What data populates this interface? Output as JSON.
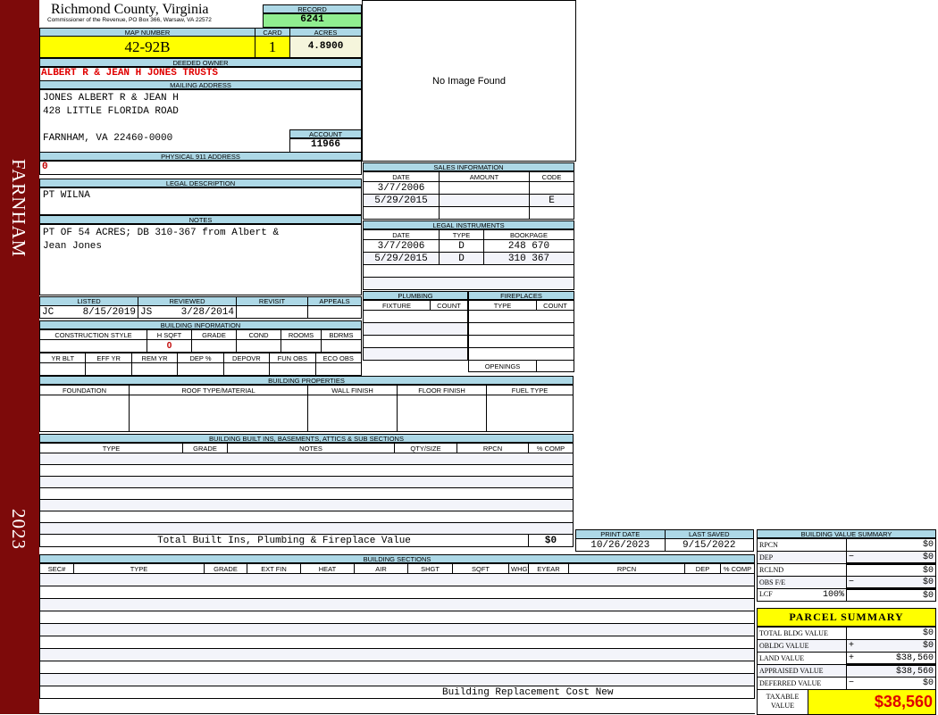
{
  "side": {
    "district": "FARNHAM",
    "year": "2023"
  },
  "header": {
    "title": "Richmond County, Virginia",
    "subtitle": "Commissioner of the Revenue, PO Box 366, Warsaw, VA 22572",
    "record_label": "RECORD",
    "record": "6241"
  },
  "map": {
    "map_label": "MAP NUMBER",
    "map_number": "42-92B",
    "card_label": "CARD",
    "card": "1",
    "acres_label": "ACRES",
    "acres": "4.8900"
  },
  "owner": {
    "label": "DEEDED OWNER",
    "value": "ALBERT R & JEAN H JONES TRUSTS"
  },
  "mailing": {
    "label": "MAILING ADDRESS",
    "line1": "JONES ALBERT R & JEAN H",
    "line2": "428 LITTLE FLORIDA ROAD",
    "line3": "FARNHAM, VA 22460-0000",
    "account_label": "ACCOUNT",
    "account": "11966"
  },
  "physical": {
    "label": "PHYSICAL 911 ADDRESS",
    "value": "0"
  },
  "image": {
    "text": "No Image Found"
  },
  "legal": {
    "label": "LEGAL DESCRIPTION",
    "value": "PT WILNA"
  },
  "notes": {
    "label": "NOTES",
    "line1": "PT OF 54 ACRES; DB 310-367 from Albert &",
    "line2": "Jean Jones"
  },
  "review": {
    "listed_label": "LISTED",
    "reviewed_label": "REVIEWED",
    "revisit_label": "REVISIT",
    "appeals_label": "APPEALS",
    "listed_by": "JC",
    "listed_date": "8/15/2019",
    "reviewed_by": "JS",
    "reviewed_date": "3/28/2014"
  },
  "building_info": {
    "label": "BUILDING INFORMATION",
    "cols1": [
      "CONSTRUCTION STYLE",
      "H SQFT",
      "GRADE",
      "COND",
      "ROOMS",
      "BDRMS"
    ],
    "hsqft": "0",
    "cols2": [
      "YR BLT",
      "EFF YR",
      "REM YR",
      "DEP %",
      "DEPOVR",
      "FUN OBS",
      "ECO OBS"
    ]
  },
  "sales": {
    "label": "SALES INFORMATION",
    "cols": [
      "DATE",
      "AMOUNT",
      "CODE"
    ],
    "rows": [
      [
        "3/7/2006",
        "",
        ""
      ],
      [
        "5/29/2015",
        "",
        "E"
      ]
    ]
  },
  "instruments": {
    "label": "LEGAL INSTRUMENTS",
    "cols": [
      "DATE",
      "TYPE",
      "BOOKPAGE"
    ],
    "rows": [
      [
        "3/7/2006",
        "D",
        "248 670"
      ],
      [
        "5/29/2015",
        "D",
        "310 367"
      ]
    ]
  },
  "plumbing": {
    "label": "PLUMBING",
    "cols": [
      "FIXTURE",
      "COUNT"
    ]
  },
  "fireplaces": {
    "label": "FIREPLACES",
    "cols": [
      "TYPE",
      "COUNT"
    ],
    "openings_label": "OPENINGS"
  },
  "properties": {
    "label": "BUILDING PROPERTIES",
    "cols": [
      "FOUNDATION",
      "ROOF TYPE/MATERIAL",
      "WALL FINISH",
      "FLOOR FINISH",
      "FUEL TYPE"
    ]
  },
  "builtins": {
    "label": "BUILDING BUILT INS, BASEMENTS, ATTICS & SUB SECTIONS",
    "cols": [
      "TYPE",
      "GRADE",
      "NOTES",
      "QTY/SIZE",
      "RPCN",
      "% COMP"
    ],
    "total_label": "Total Built Ins, Plumbing & Fireplace Value",
    "total": "$0"
  },
  "dates": {
    "print_label": "PRINT DATE",
    "print_date": "10/26/2023",
    "saved_label": "LAST SAVED",
    "saved_date": "9/15/2022"
  },
  "sections": {
    "label": "BUILDING SECTIONS",
    "cols": [
      "SEC#",
      "TYPE",
      "GRADE",
      "EXT FIN",
      "HEAT",
      "AIR",
      "SHGT",
      "SQFT",
      "WHGT",
      "EYEAR",
      "RPCN",
      "DEP",
      "% COMP"
    ],
    "footer": "Building Replacement Cost New"
  },
  "bvs": {
    "label": "BUILDING VALUE SUMMARY",
    "rows": [
      {
        "label": "RPCN",
        "sign": "",
        "value": "$0"
      },
      {
        "label": "DEP",
        "sign": "−",
        "value": "$0"
      },
      {
        "label": "RCLND",
        "sign": "",
        "value": "$0"
      },
      {
        "label": "OBS F/E",
        "sign": "−",
        "value": "$0"
      },
      {
        "label": "LCF",
        "pct": "100%",
        "sign": "",
        "value": "$0"
      }
    ]
  },
  "parcel": {
    "label": "PARCEL SUMMARY",
    "rows": [
      {
        "label": "TOTAL BLDG VALUE",
        "sign": "",
        "value": "$0"
      },
      {
        "label": "OBLDG VALUE",
        "sign": "+",
        "value": "$0"
      },
      {
        "label": "LAND VALUE",
        "sign": "+",
        "value": "$38,560"
      },
      {
        "label": "APPRAISED VALUE",
        "sign": "",
        "value": "$38,560"
      },
      {
        "label": "DEFERRED VALUE",
        "sign": "−",
        "value": "$0"
      }
    ],
    "taxable_label1": "TAXABLE",
    "taxable_label2": "VALUE",
    "taxable": "$38,560"
  }
}
